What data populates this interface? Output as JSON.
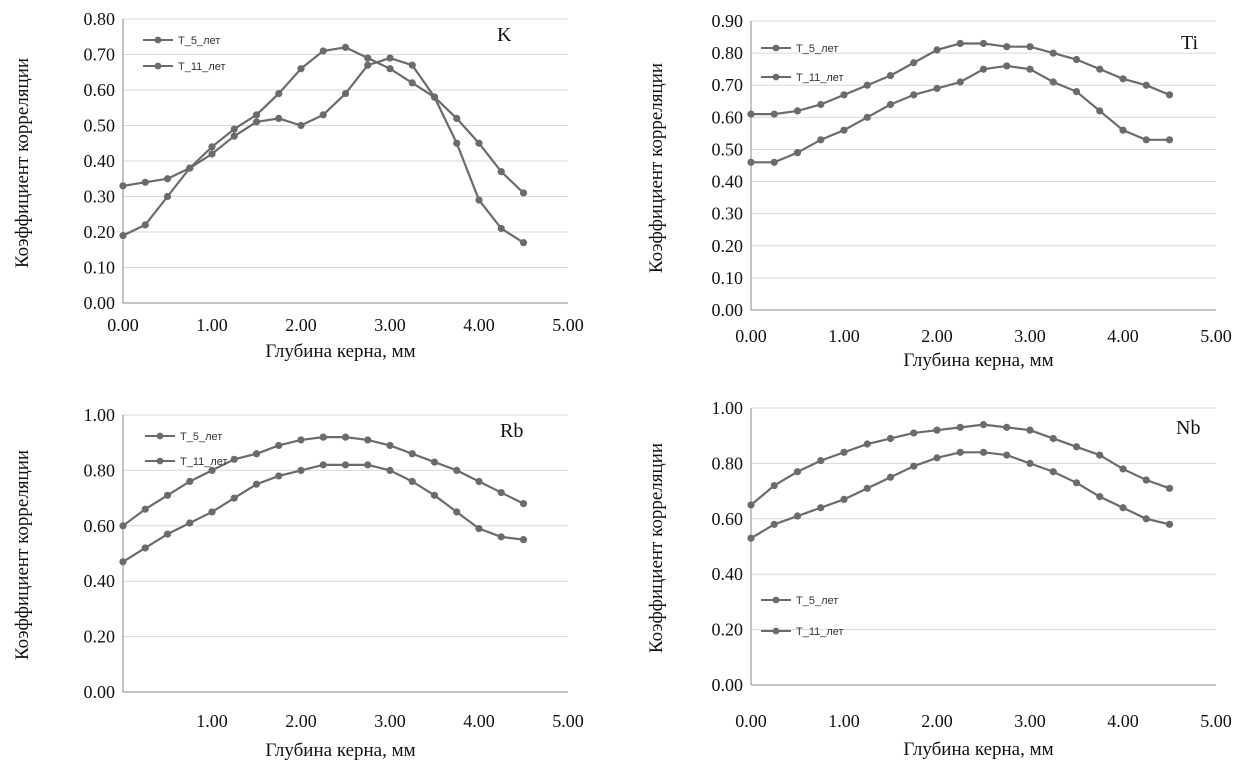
{
  "chart_data": [
    {
      "type": "line",
      "element_label": "K",
      "xlabel": "Глубина керна, мм",
      "ylabel": "Коэффициент корреляции",
      "xlim": [
        0,
        5
      ],
      "ylim": [
        0,
        0.8
      ],
      "xticks": [
        0,
        1,
        2,
        3,
        4,
        5
      ],
      "xtick_labels": [
        "0.00",
        "1.00",
        "2.00",
        "3.00",
        "4.00",
        "5.00"
      ],
      "yticks": [
        0,
        0.1,
        0.2,
        0.3,
        0.4,
        0.5,
        0.6,
        0.7,
        0.8
      ],
      "ytick_labels": [
        "0.00",
        "0.10",
        "0.20",
        "0.30",
        "0.40",
        "0.50",
        "0.60",
        "0.70",
        "0.80"
      ],
      "grid": true,
      "legend_position": "top-left",
      "x": [
        0,
        0.25,
        0.5,
        0.75,
        1.0,
        1.25,
        1.5,
        1.75,
        2.0,
        2.25,
        2.5,
        2.75,
        3.0,
        3.25,
        3.5,
        3.75,
        4.0,
        4.25,
        4.5
      ],
      "series": [
        {
          "name": "T_5_лет",
          "values": [
            0.33,
            0.34,
            0.35,
            0.38,
            0.42,
            0.47,
            0.51,
            0.52,
            0.5,
            0.53,
            0.59,
            0.67,
            0.69,
            0.67,
            0.58,
            0.45,
            0.29,
            0.21,
            0.17
          ]
        },
        {
          "name": "T_11_лет",
          "values": [
            0.19,
            0.22,
            0.3,
            0.38,
            0.44,
            0.49,
            0.53,
            0.59,
            0.66,
            0.71,
            0.72,
            0.69,
            0.66,
            0.62,
            0.58,
            0.52,
            0.45,
            0.37,
            0.31
          ]
        }
      ]
    },
    {
      "type": "line",
      "element_label": "Ti",
      "xlabel": "Глубина керна, мм",
      "ylabel": "Коэффициент корреляции",
      "xlim": [
        0,
        5
      ],
      "ylim": [
        0,
        0.9
      ],
      "xticks": [
        0,
        1,
        2,
        3,
        4,
        5
      ],
      "xtick_labels": [
        "0.00",
        "1.00",
        "2.00",
        "3.00",
        "4.00",
        "5.00"
      ],
      "yticks": [
        0,
        0.1,
        0.2,
        0.3,
        0.4,
        0.5,
        0.6,
        0.7,
        0.8,
        0.9
      ],
      "ytick_labels": [
        "0.00",
        "0.10",
        "0.20",
        "0.30",
        "0.40",
        "0.50",
        "0.60",
        "0.70",
        "0.80",
        "0.90"
      ],
      "grid": true,
      "legend_position": "top-left",
      "x": [
        0,
        0.25,
        0.5,
        0.75,
        1.0,
        1.25,
        1.5,
        1.75,
        2.0,
        2.25,
        2.5,
        2.75,
        3.0,
        3.25,
        3.5,
        3.75,
        4.0,
        4.25,
        4.5
      ],
      "series": [
        {
          "name": "T_5_лет",
          "values": [
            0.46,
            0.46,
            0.49,
            0.53,
            0.56,
            0.6,
            0.64,
            0.67,
            0.69,
            0.71,
            0.75,
            0.76,
            0.75,
            0.71,
            0.68,
            0.62,
            0.56,
            0.53,
            0.53
          ]
        },
        {
          "name": "T_11_лет",
          "values": [
            0.61,
            0.61,
            0.62,
            0.64,
            0.67,
            0.7,
            0.73,
            0.77,
            0.81,
            0.83,
            0.83,
            0.82,
            0.82,
            0.8,
            0.78,
            0.75,
            0.72,
            0.7,
            0.67
          ]
        }
      ]
    },
    {
      "type": "line",
      "element_label": "Rb",
      "xlabel": "Глубина керна, мм",
      "ylabel": "Коэффициент корреляции",
      "xlim": [
        0,
        5
      ],
      "ylim": [
        0,
        1.0
      ],
      "xticks": [
        1,
        2,
        3,
        4,
        5
      ],
      "xtick_labels": [
        "1.00",
        "2.00",
        "3.00",
        "4.00",
        "5.00"
      ],
      "yticks": [
        0,
        0.2,
        0.4,
        0.6,
        0.8,
        1.0
      ],
      "ytick_labels": [
        "0.00",
        "0.20",
        "0.40",
        "0.60",
        "0.80",
        "1.00"
      ],
      "grid": true,
      "legend_position": "top-left",
      "x": [
        0,
        0.25,
        0.5,
        0.75,
        1.0,
        1.25,
        1.5,
        1.75,
        2.0,
        2.25,
        2.5,
        2.75,
        3.0,
        3.25,
        3.5,
        3.75,
        4.0,
        4.25,
        4.5
      ],
      "series": [
        {
          "name": "T_5_лет",
          "values": [
            0.47,
            0.52,
            0.57,
            0.61,
            0.65,
            0.7,
            0.75,
            0.78,
            0.8,
            0.82,
            0.82,
            0.82,
            0.8,
            0.76,
            0.71,
            0.65,
            0.59,
            0.56,
            0.55
          ]
        },
        {
          "name": "T_11_лет",
          "values": [
            0.6,
            0.66,
            0.71,
            0.76,
            0.8,
            0.84,
            0.86,
            0.89,
            0.91,
            0.92,
            0.92,
            0.91,
            0.89,
            0.86,
            0.83,
            0.8,
            0.76,
            0.72,
            0.68
          ]
        }
      ]
    },
    {
      "type": "line",
      "element_label": "Nb",
      "xlabel": "Глубина керна, мм",
      "ylabel": "Коэффициент корреляции",
      "xlim": [
        0,
        5
      ],
      "ylim": [
        0,
        1.0
      ],
      "xticks": [
        0,
        1,
        2,
        3,
        4,
        5
      ],
      "xtick_labels": [
        "0.00",
        "1.00",
        "2.00",
        "3.00",
        "4.00",
        "5.00"
      ],
      "yticks": [
        0,
        0.2,
        0.4,
        0.6,
        0.8,
        1.0
      ],
      "ytick_labels": [
        "0.00",
        "0.20",
        "0.40",
        "0.60",
        "0.80",
        "1.00"
      ],
      "grid": true,
      "legend_position": "bottom-left",
      "x": [
        0,
        0.25,
        0.5,
        0.75,
        1.0,
        1.25,
        1.5,
        1.75,
        2.0,
        2.25,
        2.5,
        2.75,
        3.0,
        3.25,
        3.5,
        3.75,
        4.0,
        4.25,
        4.5
      ],
      "series": [
        {
          "name": "T_5_лет",
          "values": [
            0.53,
            0.58,
            0.61,
            0.64,
            0.67,
            0.71,
            0.75,
            0.79,
            0.82,
            0.84,
            0.84,
            0.83,
            0.8,
            0.77,
            0.73,
            0.68,
            0.64,
            0.6,
            0.58
          ]
        },
        {
          "name": "T_11_лет",
          "values": [
            0.65,
            0.72,
            0.77,
            0.81,
            0.84,
            0.87,
            0.89,
            0.91,
            0.92,
            0.93,
            0.94,
            0.93,
            0.92,
            0.89,
            0.86,
            0.83,
            0.78,
            0.74,
            0.71
          ]
        }
      ]
    }
  ],
  "colors": {
    "series": "#6b6b6b",
    "grid": "#d9d9d9",
    "axis": "#888888",
    "text": "#111111"
  }
}
